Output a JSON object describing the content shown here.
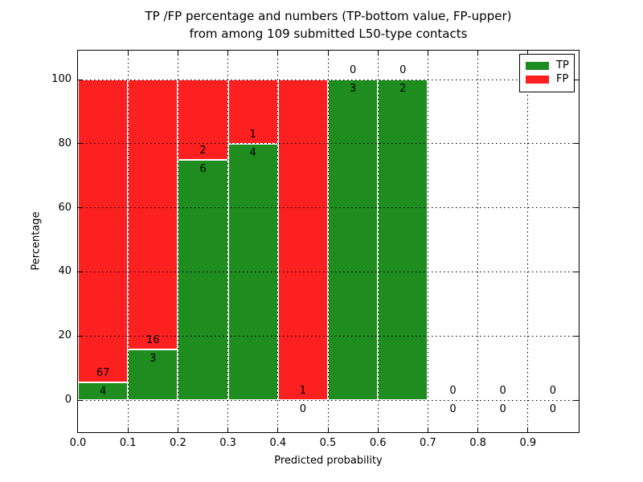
{
  "figure": {
    "title_line1": "TP /FP percentage and numbers (TP-bottom value, FP-upper)",
    "title_line2": "from among 109 submitted L50-type contacts",
    "xlabel": "Predicted probability",
    "ylabel": "Percentage"
  },
  "chart_data": {
    "type": "bar",
    "subtype": "stacked-percentage-histogram",
    "title": "TP /FP percentage and numbers (TP-bottom value, FP-upper) from among 109 submitted L50-type contacts",
    "xlabel": "Predicted probability",
    "ylabel": "Percentage",
    "total_contacts": 109,
    "annotation_convention": "TP count printed below the TP/FP boundary, FP count printed above it",
    "x_tick_labels": [
      "0.0",
      "0.1",
      "0.2",
      "0.3",
      "0.4",
      "0.5",
      "0.6",
      "0.7",
      "0.8",
      "0.9"
    ],
    "y_tick_values": [
      0,
      20,
      40,
      60,
      80,
      100
    ],
    "xlim": [
      0.0,
      1.0
    ],
    "ylim": [
      -10,
      110
    ],
    "grid": "dotted",
    "legend": {
      "position": "upper-right",
      "entries": [
        {
          "label": "TP",
          "color": "#1e8c1e"
        },
        {
          "label": "FP",
          "color": "#fd2020"
        }
      ]
    },
    "colors": {
      "tp": "#1e8c1e",
      "fp": "#fd2020",
      "axes": "#000000",
      "background": "#ffffff"
    },
    "bins": [
      {
        "x_start": 0.0,
        "x_end": 0.1,
        "tp": 4,
        "fp": 67
      },
      {
        "x_start": 0.1,
        "x_end": 0.2,
        "tp": 3,
        "fp": 16
      },
      {
        "x_start": 0.2,
        "x_end": 0.3,
        "tp": 6,
        "fp": 2
      },
      {
        "x_start": 0.3,
        "x_end": 0.4,
        "tp": 4,
        "fp": 1
      },
      {
        "x_start": 0.4,
        "x_end": 0.5,
        "tp": 0,
        "fp": 1
      },
      {
        "x_start": 0.5,
        "x_end": 0.6,
        "tp": 3,
        "fp": 0
      },
      {
        "x_start": 0.6,
        "x_end": 0.7,
        "tp": 2,
        "fp": 0
      },
      {
        "x_start": 0.7,
        "x_end": 0.8,
        "tp": 0,
        "fp": 0
      },
      {
        "x_start": 0.8,
        "x_end": 0.9,
        "tp": 0,
        "fp": 0
      },
      {
        "x_start": 0.9,
        "x_end": 1.0,
        "tp": 0,
        "fp": 0
      }
    ]
  }
}
